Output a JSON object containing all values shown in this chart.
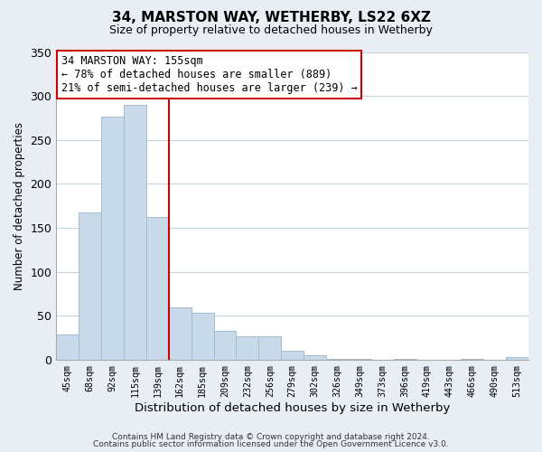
{
  "title": "34, MARSTON WAY, WETHERBY, LS22 6XZ",
  "subtitle": "Size of property relative to detached houses in Wetherby",
  "xlabel": "Distribution of detached houses by size in Wetherby",
  "ylabel": "Number of detached properties",
  "bar_labels": [
    "45sqm",
    "68sqm",
    "92sqm",
    "115sqm",
    "139sqm",
    "162sqm",
    "185sqm",
    "209sqm",
    "232sqm",
    "256sqm",
    "279sqm",
    "302sqm",
    "326sqm",
    "349sqm",
    "373sqm",
    "396sqm",
    "419sqm",
    "443sqm",
    "466sqm",
    "490sqm",
    "513sqm"
  ],
  "bar_heights": [
    29,
    168,
    277,
    290,
    162,
    60,
    54,
    33,
    27,
    27,
    10,
    5,
    1,
    1,
    0,
    1,
    0,
    0,
    1,
    0,
    3
  ],
  "bar_color": "#c8daea",
  "bar_edge_color": "#a0bcd4",
  "vline_x": 4.5,
  "vline_color": "#cc0000",
  "ylim": [
    0,
    350
  ],
  "yticks": [
    0,
    50,
    100,
    150,
    200,
    250,
    300,
    350
  ],
  "annotation_title": "34 MARSTON WAY: 155sqm",
  "annotation_line1": "← 78% of detached houses are smaller (889)",
  "annotation_line2": "21% of semi-detached houses are larger (239) →",
  "footer1": "Contains HM Land Registry data © Crown copyright and database right 2024.",
  "footer2": "Contains public sector information licensed under the Open Government Licence v3.0.",
  "background_color": "#e8eef4",
  "plot_bg_color": "#ffffff",
  "grid_color": "#c8d4dc"
}
